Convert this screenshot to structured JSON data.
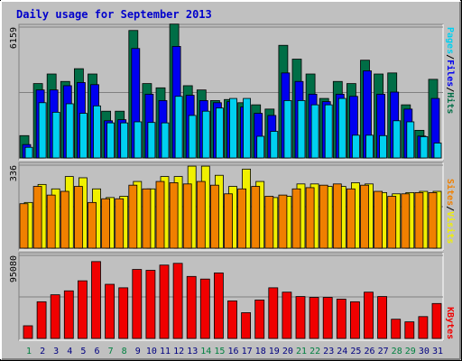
{
  "chart_data": {
    "type": "bar",
    "title": "Daily usage for September 2013",
    "days": [
      "1",
      "2",
      "3",
      "4",
      "5",
      "6",
      "7",
      "8",
      "9",
      "10",
      "11",
      "12",
      "13",
      "14",
      "15",
      "16",
      "17",
      "18",
      "19",
      "20",
      "21",
      "22",
      "23",
      "24",
      "25",
      "26",
      "27",
      "28",
      "29",
      "30",
      "31"
    ],
    "weekend_days": [
      "1",
      "7",
      "8",
      "14",
      "15",
      "21",
      "22",
      "28",
      "29"
    ],
    "colors": {
      "title": "#0000cc",
      "hits": "#006e46",
      "files": "#0000f0",
      "pages": "#00d0f0",
      "visits": "#f0f000",
      "sites": "#f08000",
      "kbytes": "#f00000",
      "weekday_label": "#000080",
      "weekend_label": "#008040",
      "panel": "#c0c0c0"
    },
    "panels": [
      {
        "max_label": "6159",
        "ymax": 6159,
        "legend": [
          {
            "label": "Pages",
            "color": "#00d0f0"
          },
          {
            "label": "/",
            "color": "#000000"
          },
          {
            "label": "Files",
            "color": "#0000f0"
          },
          {
            "label": "/",
            "color": "#000000"
          },
          {
            "label": "Hits",
            "color": "#006e46"
          }
        ],
        "series": [
          {
            "name": "Hits",
            "color": "#006e46",
            "values": [
              1050,
              3500,
              3950,
              3600,
              4200,
              3950,
              2200,
              2200,
              6000,
              3500,
              3300,
              6300,
              3400,
              3200,
              2700,
              2750,
              2600,
              2500,
              2300,
              5300,
              4650,
              3950,
              2800,
              3600,
              3500,
              4600,
              3950,
              4000,
              2500,
              1300,
              3700
            ]
          },
          {
            "name": "Files",
            "color": "#0000f0",
            "values": [
              630,
              3200,
              3200,
              3400,
              3550,
              3450,
              1750,
              1800,
              5150,
              3000,
              2700,
              5250,
              2950,
              2700,
              2600,
              2650,
              2400,
              2100,
              2000,
              4000,
              3600,
              3000,
              2650,
              3000,
              2900,
              4100,
              3000,
              3100,
              2300,
              1030,
              2800
            ]
          },
          {
            "name": "Pages",
            "color": "#00d0f0",
            "values": [
              500,
              2600,
              2150,
              2550,
              2100,
              2450,
              1650,
              1650,
              1700,
              1670,
              1650,
              2900,
              2000,
              2200,
              2350,
              2800,
              2800,
              1020,
              1250,
              2700,
              2700,
              2500,
              2500,
              2800,
              1070,
              1070,
              1050,
              1750,
              1700,
              1000,
              700
            ]
          }
        ]
      },
      {
        "max_label": "336",
        "ymax": 336,
        "legend": [
          {
            "label": "Sites",
            "color": "#f08000"
          },
          {
            "label": "/",
            "color": "#000000"
          },
          {
            "label": "Visits",
            "color": "#f0f000"
          }
        ],
        "series": [
          {
            "name": "Visits",
            "color": "#f0f000",
            "values": [
              185,
              258,
              240,
              290,
              285,
              240,
              205,
              210,
              270,
              240,
              290,
              290,
              332,
              332,
              295,
              250,
              320,
              270,
              205,
              210,
              260,
              260,
              250,
              250,
              265,
              260,
              225,
              220,
              225,
              230,
              230
            ]
          },
          {
            "name": "Sites",
            "color": "#f08000",
            "values": [
              180,
              250,
              215,
              230,
              250,
              185,
              200,
              200,
              255,
              240,
              270,
              265,
              260,
              270,
              255,
              220,
              240,
              250,
              210,
              215,
              240,
              245,
              255,
              260,
              240,
              255,
              230,
              210,
              220,
              225,
              225
            ]
          }
        ]
      },
      {
        "max_label": "95080",
        "ymax": 95080,
        "legend": [
          {
            "label": "KBytes",
            "color": "#f00000"
          }
        ],
        "series": [
          {
            "name": "KBytes",
            "color": "#f00000",
            "values": [
              14500,
              42000,
              50000,
              54500,
              66000,
              88000,
              62000,
              58000,
              79000,
              78000,
              84000,
              86000,
              71000,
              68000,
              75000,
              43000,
              29500,
              44000,
              58000,
              53000,
              48000,
              47000,
              47000,
              45000,
              42000,
              53000,
              48000,
              22000,
              19000,
              25000,
              40000
            ]
          }
        ]
      }
    ]
  }
}
